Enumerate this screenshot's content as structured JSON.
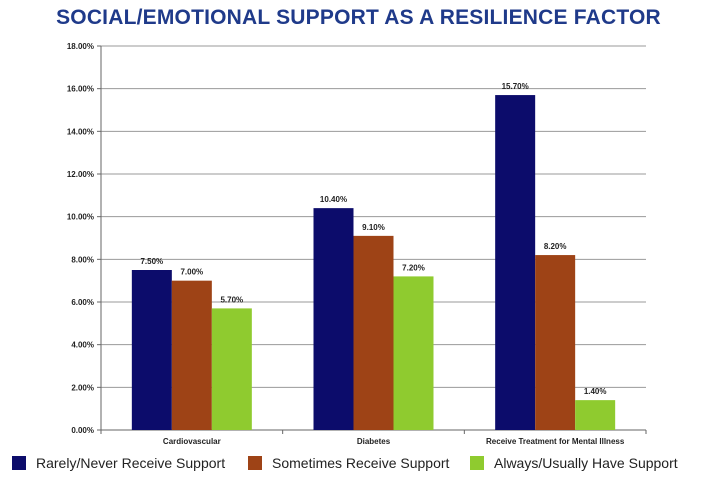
{
  "chart_data": {
    "type": "bar",
    "title": "SOCIAL/EMOTIONAL SUPPORT AS A RESILIENCE FACTOR",
    "categories": [
      "Cardiovascular",
      "Diabetes",
      "Receive Treatment for Mental Illness"
    ],
    "series": [
      {
        "name": "Rarely/Never Receive Support",
        "color": "#0c0c6b",
        "values": [
          7.5,
          10.4,
          15.7
        ],
        "labels": [
          "7.50%",
          "10.40%",
          "15.70%"
        ]
      },
      {
        "name": "Sometimes Receive Support",
        "color": "#9e4316",
        "values": [
          7.0,
          9.1,
          8.2
        ],
        "labels": [
          "7.00%",
          "9.10%",
          "8.20%"
        ]
      },
      {
        "name": "Always/Usually Have Support",
        "color": "#8fcb2f",
        "values": [
          5.7,
          7.2,
          1.4
        ],
        "labels": [
          "5.70%",
          "7.20%",
          "1.40%"
        ]
      }
    ],
    "ylim": [
      0,
      18
    ],
    "yticks": [
      "0.00%",
      "2.00%",
      "4.00%",
      "6.00%",
      "8.00%",
      "10.00%",
      "12.00%",
      "14.00%",
      "16.00%",
      "18.00%"
    ],
    "xlabel": "",
    "ylabel": "",
    "grid": true,
    "legend": "bottom"
  }
}
